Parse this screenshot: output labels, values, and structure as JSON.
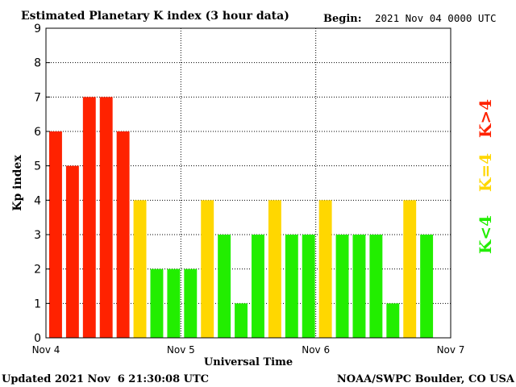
{
  "chart_data": {
    "type": "bar",
    "title": "Estimated Planetary K index (3 hour data)",
    "begin_label": "Begin:",
    "begin_value": "2021 Nov 04 0000 UTC",
    "ylabel": "Kp index",
    "xlabel": "Universal Time",
    "ylim": [
      0,
      9
    ],
    "yticks": [
      "0",
      "1",
      "2",
      "3",
      "4",
      "5",
      "6",
      "7",
      "8",
      "9"
    ],
    "x_day_labels": [
      "Nov 4",
      "Nov 5",
      "Nov 6",
      "Nov 7"
    ],
    "grid": true,
    "values": [
      6,
      5,
      7,
      7,
      6,
      4,
      2,
      2,
      2,
      4,
      3,
      1,
      3,
      4,
      3,
      3,
      4,
      3,
      3,
      3,
      1,
      4,
      3
    ],
    "legend": [
      {
        "label": "K>4",
        "color": "#ff2200"
      },
      {
        "label": "K=4",
        "color": "#ffd700"
      },
      {
        "label": "K<4",
        "color": "#22ee00"
      }
    ],
    "colors": {
      "high": "#ff2200",
      "mid": "#ffd700",
      "low": "#22ee00"
    }
  },
  "footer": {
    "updated": "Updated 2021 Nov  6 21:30:08 UTC",
    "credit": "NOAA/SWPC Boulder, CO USA"
  }
}
